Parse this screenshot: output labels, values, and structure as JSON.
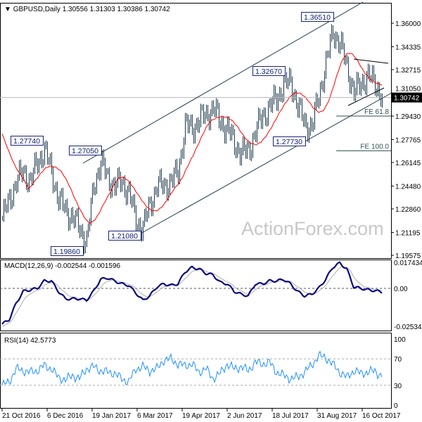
{
  "header": {
    "symbol": "GBPUSD,Daily",
    "ohlc": "1.30556 1.31303 1.30386 1.30742"
  },
  "watermark": "ActionForex.com",
  "colors": {
    "bars": "#1f3b4d",
    "ma": "#ff0000",
    "macd": "#0a0a80",
    "signal": "#b0b0b0",
    "rsi": "#1e90ff",
    "annotation_border": "#1a237e"
  },
  "chart_data": [
    {
      "type": "ohlc-bar",
      "title": "GBPUSD,Daily",
      "ylim": [
        1.19575,
        1.36
      ],
      "yticks": [
        "1.36000",
        "1.34335",
        "1.32715",
        "1.31050",
        "1.29430",
        "1.27765",
        "1.26145",
        "1.24480",
        "1.22860",
        "1.21195",
        "1.19575"
      ],
      "ytick_values": [
        1.36,
        1.34335,
        1.32715,
        1.3105,
        1.2943,
        1.27765,
        1.26145,
        1.2448,
        1.2286,
        1.21195,
        1.19575
      ],
      "xticks": [
        "21 Oct 2016",
        "6 Dec 2016",
        "19 Jan 2017",
        "6 Mar 2017",
        "19 Apr 2017",
        "2 Jun 2017",
        "18 Jul 2017",
        "31 Aug 2017",
        "16 Oct 2017"
      ],
      "last_price": "1.30742",
      "weekly_close": [
        1.222,
        1.235,
        1.248,
        1.255,
        1.248,
        1.262,
        1.27,
        1.255,
        1.235,
        1.228,
        1.222,
        1.215,
        1.205,
        1.245,
        1.262,
        1.25,
        1.245,
        1.248,
        1.24,
        1.22,
        1.215,
        1.232,
        1.245,
        1.245,
        1.248,
        1.255,
        1.288,
        1.285,
        1.292,
        1.295,
        1.3,
        1.29,
        1.285,
        1.275,
        1.268,
        1.27,
        1.283,
        1.295,
        1.3,
        1.308,
        1.315,
        1.32,
        1.3,
        1.29,
        1.285,
        1.31,
        1.33,
        1.355,
        1.345,
        1.33,
        1.31,
        1.318,
        1.322,
        1.318,
        1.30742
      ],
      "annotations": [
        {
          "label": "1.36510",
          "price": 1.3651
        },
        {
          "label": "1.32670",
          "price": 1.3267
        },
        {
          "label": "1.27740",
          "price": 1.2774
        },
        {
          "label": "1.27050",
          "price": 1.2705
        },
        {
          "label": "1.27730",
          "price": 1.2773
        },
        {
          "label": "1.21080",
          "price": 1.2108
        },
        {
          "label": "1.19860",
          "price": 1.1986
        }
      ],
      "fib_levels": [
        {
          "label": "FE 61.8",
          "price": 1.2943
        },
        {
          "label": "FE 100.0",
          "price": 1.2697
        }
      ],
      "grid": false
    },
    {
      "type": "line",
      "title": "MACD(12,26,9) -0.002544 -0.001596",
      "ylim": [
        -0.025342,
        0.017434
      ],
      "yticks": [
        "0.017434",
        "0.00",
        "-0.025342"
      ],
      "macd_weekly": [
        -0.024,
        -0.021,
        -0.01,
        -0.002,
        -0.001,
        0.0,
        0.005,
        0.005,
        -0.002,
        -0.007,
        -0.007,
        -0.007,
        -0.008,
        -0.002,
        0.006,
        0.007,
        0.005,
        0.003,
        0.002,
        -0.003,
        -0.008,
        -0.005,
        0.001,
        0.003,
        0.002,
        0.003,
        0.011,
        0.014,
        0.013,
        0.01,
        0.009,
        0.004,
        0.003,
        -0.002,
        -0.004,
        -0.005,
        0.003,
        0.003,
        0.005,
        0.005,
        0.006,
        0.003,
        -0.002,
        -0.005,
        -0.004,
        0.0,
        0.006,
        0.014,
        0.017,
        0.013,
        0.001,
        0.0,
        -0.001,
        -0.0015,
        -0.0025
      ]
    },
    {
      "type": "line",
      "title": "RSI(14) 42.5773",
      "ylim": [
        0,
        100
      ],
      "yticks": [
        "100",
        "70",
        "30",
        "0"
      ],
      "levels": [
        70,
        30
      ],
      "rsi_weekly": [
        30,
        35,
        55,
        52,
        50,
        52,
        60,
        55,
        42,
        38,
        45,
        40,
        55,
        58,
        52,
        50,
        48,
        40,
        35,
        55,
        58,
        52,
        55,
        68,
        70,
        62,
        60,
        62,
        50,
        55,
        40,
        48,
        62,
        55,
        58,
        52,
        65,
        62,
        65,
        50,
        45,
        40,
        42,
        50,
        60,
        75,
        72,
        62,
        50,
        42,
        52,
        48,
        50,
        52,
        42.5773
      ]
    }
  ]
}
